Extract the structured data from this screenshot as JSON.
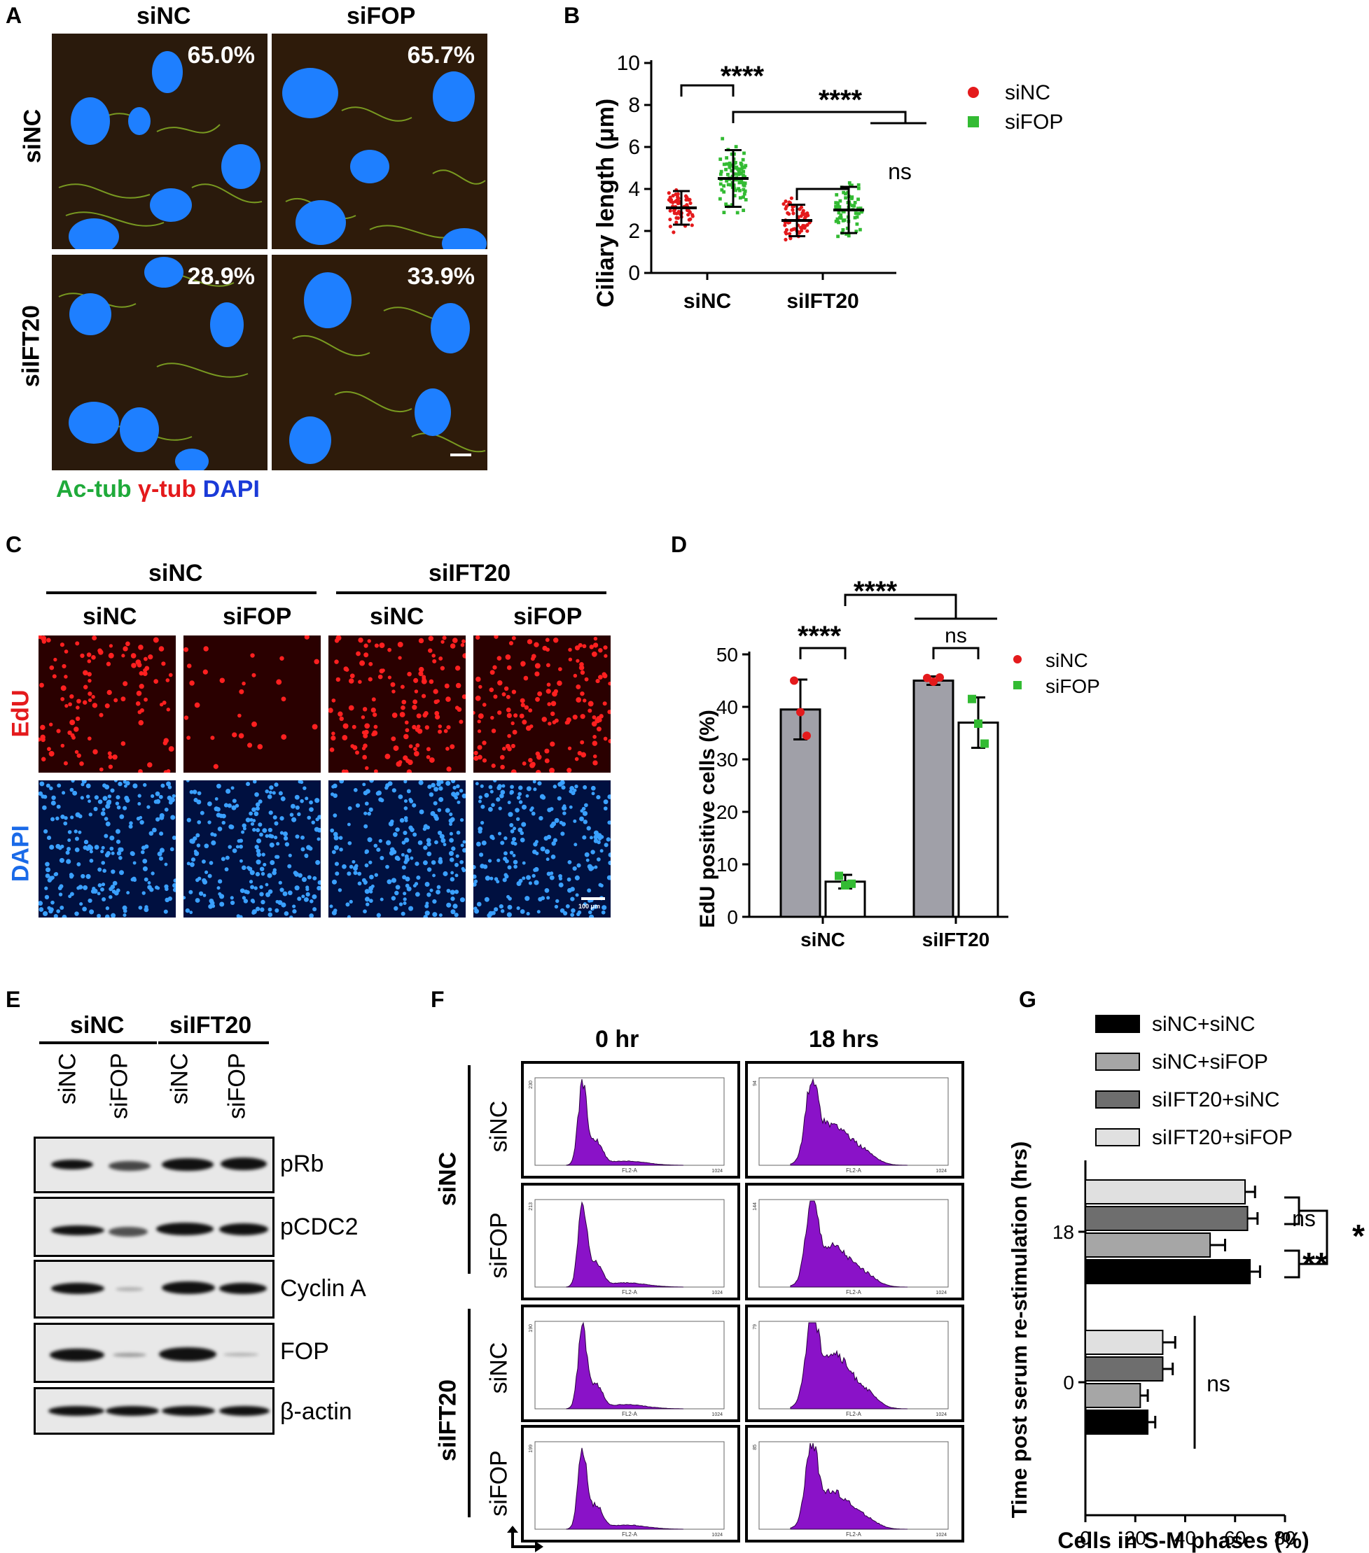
{
  "panel_a": {
    "label": "A",
    "col_labels": [
      "siNC",
      "siFOP"
    ],
    "row_labels": [
      "siNC",
      "siIFT20"
    ],
    "percents": [
      "65.0%",
      "65.7%",
      "28.9%",
      "33.9%"
    ],
    "stain_ac": "Ac-tub",
    "stain_gamma": "γ-tub",
    "stain_dapi": "DAPI"
  },
  "panel_b": {
    "label": "B",
    "sig_top": "****",
    "sig_right": "****",
    "sig_ns": "ns",
    "legend": [
      "siNC",
      "siFOP"
    ]
  },
  "panel_c": {
    "label": "C",
    "group_labels": [
      "siNC",
      "siIFT20"
    ],
    "sub_labels": [
      "siNC",
      "siFOP",
      "siNC",
      "siFOP"
    ],
    "row_labels": [
      "EdU",
      "DAPI"
    ],
    "scale_label": "100 μm"
  },
  "panel_d": {
    "label": "D",
    "sig_top": "****",
    "sig_left": "****",
    "sig_ns": "ns",
    "legend": [
      "siNC",
      "siFOP"
    ]
  },
  "panel_e": {
    "label": "E",
    "group_labels": [
      "siNC",
      "siIFT20"
    ],
    "lane_labels": [
      "siNC",
      "siFOP",
      "siNC",
      "siFOP"
    ],
    "blots": [
      "pRb",
      "pCDC2",
      "Cyclin A",
      "FOP",
      "β-actin"
    ]
  },
  "panel_f": {
    "label": "F",
    "col_labels": [
      "0 hr",
      "18 hrs"
    ],
    "group_labels": [
      "siNC",
      "siIFT20"
    ],
    "row_labels": [
      "siNC",
      "siFOP",
      "siNC",
      "siFOP"
    ],
    "axis_label": "FL2-A",
    "ymax_labels": [
      "230",
      "94",
      "213",
      "144",
      "190",
      "79",
      "199",
      "85"
    ],
    "xmax_label": "1024"
  },
  "panel_g": {
    "label": "G",
    "legend": [
      "siNC+siNC",
      "siNC+siFOP",
      "siIFT20+siNC",
      "siIFT20+siFOP"
    ],
    "sig_ns_a": "ns",
    "sig_star": "*",
    "sig_dstar": "**",
    "sig_ns_b": "ns"
  },
  "chart_data": [
    {
      "type": "scatter",
      "panel": "B",
      "ylabel": "Ciliary length (μm)",
      "categories": [
        "siNC",
        "siIFT20"
      ],
      "ylim": [
        0,
        10
      ],
      "yticks": [
        0,
        2,
        4,
        6,
        8,
        10
      ],
      "series": [
        {
          "name": "siNC",
          "color": "#e41a1c",
          "marker": "circle",
          "mean": [
            3.1,
            2.5
          ],
          "sd": [
            0.8,
            0.75
          ],
          "range": [
            [
              1.7,
              5.5
            ],
            [
              0.9,
              4.5
            ]
          ]
        },
        {
          "name": "siFOP",
          "color": "#33bb33",
          "marker": "square",
          "mean": [
            4.5,
            3.0
          ],
          "sd": [
            1.35,
            1.1
          ],
          "range": [
            [
              1.9,
              8.1
            ],
            [
              1.0,
              5.5
            ]
          ]
        }
      ]
    },
    {
      "type": "bar",
      "panel": "D",
      "ylabel": "EdU positive cells (%)",
      "categories": [
        "siNC",
        "siIFT20"
      ],
      "ylim": [
        0,
        50
      ],
      "yticks": [
        0,
        10,
        20,
        30,
        40,
        50
      ],
      "series": [
        {
          "name": "siNC",
          "color": "#a0a0a8",
          "dot_color": "#e41a1c",
          "values": [
            39.5,
            45.0
          ],
          "err": [
            5.7,
            0.8
          ],
          "points": [
            [
              45.0,
              39.0,
              34.5
            ],
            [
              45.5,
              44.8,
              45.6
            ]
          ]
        },
        {
          "name": "siFOP",
          "color": "#ffffff",
          "dot_color": "#33bb33",
          "values": [
            6.7,
            37.0
          ],
          "err": [
            1.3,
            4.8
          ],
          "points": [
            [
              7.8,
              6.0,
              6.3
            ],
            [
              41.5,
              36.8,
              33.0
            ]
          ]
        }
      ]
    },
    {
      "type": "bar",
      "panel": "G",
      "orientation": "horizontal",
      "xlabel": "Cells in S-M phases (%)",
      "ylabel": "Time post serum re-stimulation (hrs)",
      "categories": [
        "18",
        "0"
      ],
      "xlim": [
        0,
        80
      ],
      "xticks": [
        0,
        20,
        40,
        60,
        80
      ],
      "series": [
        {
          "name": "siNC+siNC",
          "color": "#000000",
          "values": [
            66,
            25
          ],
          "err": [
            4,
            3
          ]
        },
        {
          "name": "siNC+siFOP",
          "color": "#a6a6a6",
          "values": [
            50,
            22
          ],
          "err": [
            6,
            3
          ]
        },
        {
          "name": "siIFT20+siNC",
          "color": "#6e6e6e",
          "values": [
            65,
            31
          ],
          "err": [
            4,
            4
          ]
        },
        {
          "name": "siIFT20+siFOP",
          "color": "#e0e0e0",
          "values": [
            64,
            31
          ],
          "err": [
            4,
            5
          ]
        }
      ]
    }
  ]
}
